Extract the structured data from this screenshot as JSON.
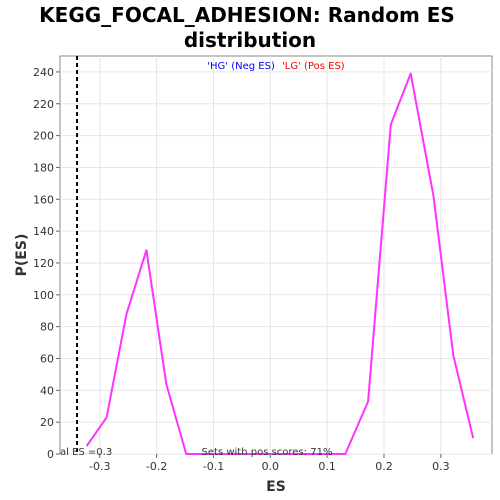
{
  "chart_data": {
    "type": "line",
    "title_lines": [
      "KEGG_FOCAL_ADHESION: Random ES",
      "distribution"
    ],
    "xlabel": "ES",
    "ylabel": "P(ES)",
    "xlim": [
      -0.37,
      0.39
    ],
    "ylim": [
      0,
      250
    ],
    "x_ticks": [
      -0.3,
      -0.2,
      -0.1,
      0.0,
      0.1,
      0.2,
      0.3
    ],
    "x_tick_labels": [
      "-0.3",
      "-0.2",
      "-0.1",
      "0.0",
      "0.1",
      "0.2",
      "0.3"
    ],
    "y_ticks": [
      0,
      20,
      40,
      60,
      80,
      100,
      120,
      140,
      160,
      180,
      200,
      220,
      240
    ],
    "y_tick_labels": [
      "0",
      "20",
      "40",
      "60",
      "80",
      "100",
      "120",
      "140",
      "160",
      "180",
      "200",
      "220",
      "240"
    ],
    "grid": true,
    "series": [
      {
        "color": "#ff33ff",
        "x": [
          -0.323,
          -0.288,
          -0.253,
          -0.218,
          -0.183,
          -0.148,
          -0.113,
          -0.078,
          -0.043,
          -0.008,
          0.027,
          0.062,
          0.097,
          0.132,
          0.172,
          0.212,
          0.247,
          0.287,
          0.322,
          0.357
        ],
        "y": [
          5,
          23,
          88,
          128,
          44,
          0,
          0,
          0,
          0,
          0,
          0,
          0,
          0,
          0,
          33,
          207,
          239,
          162,
          62,
          10
        ]
      }
    ],
    "reference_line": {
      "x": -0.34,
      "style": "dashed",
      "color": "#000000"
    },
    "legend": {
      "placement": "top-center",
      "entries": [
        {
          "text": "'HG' (Neg ES)",
          "color": "#0000ff"
        },
        {
          "text": "'LG' (Pos ES)",
          "color": "#ff0000"
        }
      ]
    },
    "annotations": {
      "left_note": "al ES =0.3",
      "bottom_note": "Sets with pos scores: 71%"
    }
  }
}
